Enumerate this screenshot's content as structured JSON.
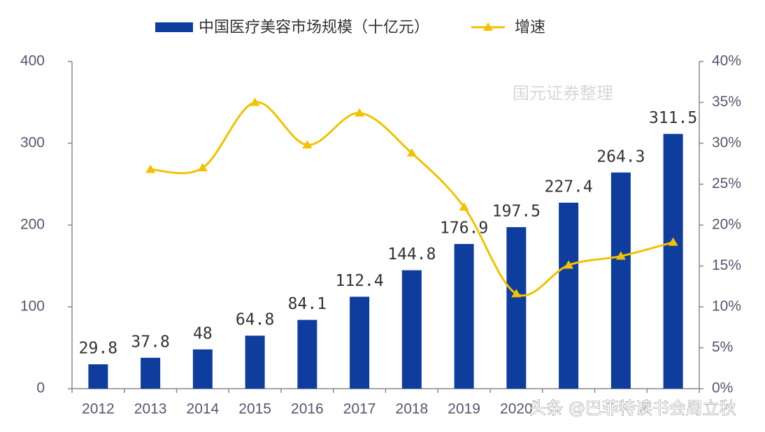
{
  "chart_data": {
    "type": "bar_line",
    "categories": [
      "2012",
      "2013",
      "2014",
      "2015",
      "2016",
      "2017",
      "2018",
      "2019",
      "2020",
      null,
      null,
      null
    ],
    "series": [
      {
        "name": "中国医疗美容市场规模（十亿元）",
        "type": "bar",
        "color": "#0e3d9e",
        "values": [
          29.8,
          37.8,
          48,
          64.8,
          84.1,
          112.4,
          144.8,
          176.9,
          197.5,
          227.4,
          264.3,
          311.5
        ]
      },
      {
        "name": "增速",
        "type": "line",
        "axis": "y2",
        "color": "#f2c200",
        "values": [
          null,
          26.8,
          27.0,
          35.0,
          29.8,
          33.7,
          28.8,
          22.2,
          11.6,
          15.1,
          16.2,
          17.9
        ]
      }
    ],
    "ylim": [
      0,
      400
    ],
    "yticks": [
      0,
      100,
      200,
      300,
      400
    ],
    "y2lim": [
      0,
      40
    ],
    "y2ticks": [
      {
        "value": 0,
        "label": "0%"
      },
      {
        "value": 5,
        "label": "5%"
      },
      {
        "value": 10,
        "label": "10%"
      },
      {
        "value": 15,
        "label": "15%"
      },
      {
        "value": 20,
        "label": "20%"
      },
      {
        "value": 25,
        "label": "25%"
      },
      {
        "value": 30,
        "label": "30%"
      },
      {
        "value": 35,
        "label": "35%"
      },
      {
        "value": 40,
        "label": "40%"
      }
    ],
    "annotation": "国元证券整理",
    "watermark": "头条 @巴菲特读书会周立秋",
    "legend": "top"
  }
}
